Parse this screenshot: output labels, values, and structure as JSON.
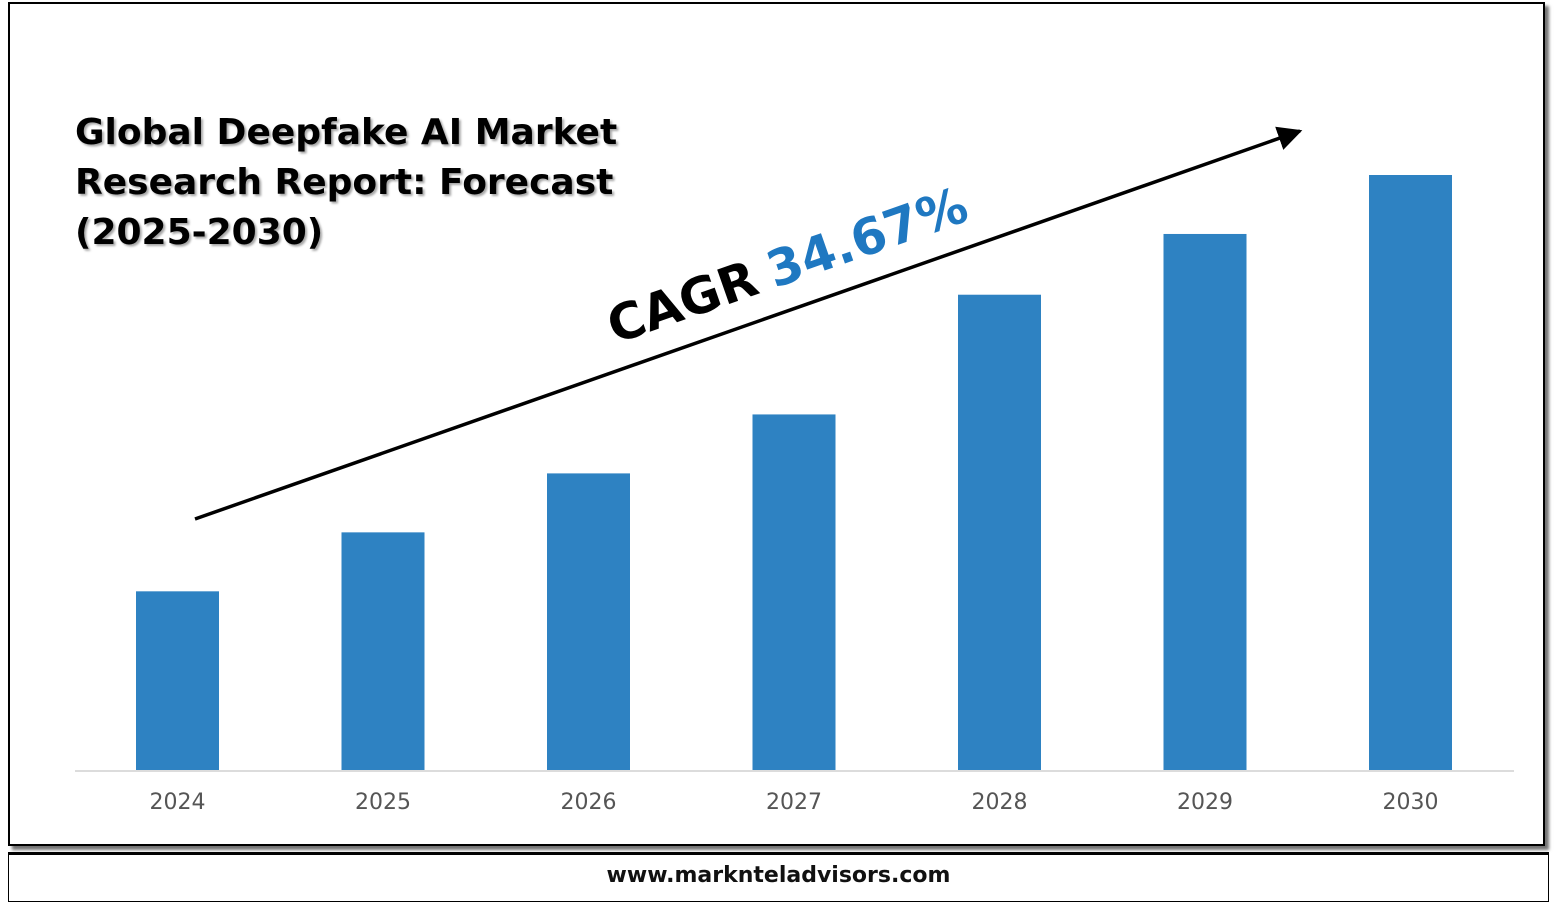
{
  "title": "Global Deepfake AI Market Research Report: Forecast (2025-2030)",
  "cagr": {
    "label": "CAGR",
    "value": "34.67%"
  },
  "footer": {
    "website": "www.marknteladvisors.com"
  },
  "colors": {
    "bar": "#2e82c2",
    "cagr_value": "#1f78c1",
    "axis_text": "#555555"
  },
  "chart_data": {
    "type": "bar",
    "categories": [
      "2024",
      "2025",
      "2026",
      "2027",
      "2028",
      "2029",
      "2030"
    ],
    "values": [
      1.0,
      1.33,
      1.66,
      1.99,
      2.66,
      3.0,
      3.33
    ],
    "title": "Global Deepfake AI Market Research Report: Forecast (2025-2030)",
    "xlabel": "",
    "ylabel": "",
    "ylim": [
      0,
      3.33
    ],
    "grid": false,
    "annotation": "CAGR 34.67%"
  }
}
